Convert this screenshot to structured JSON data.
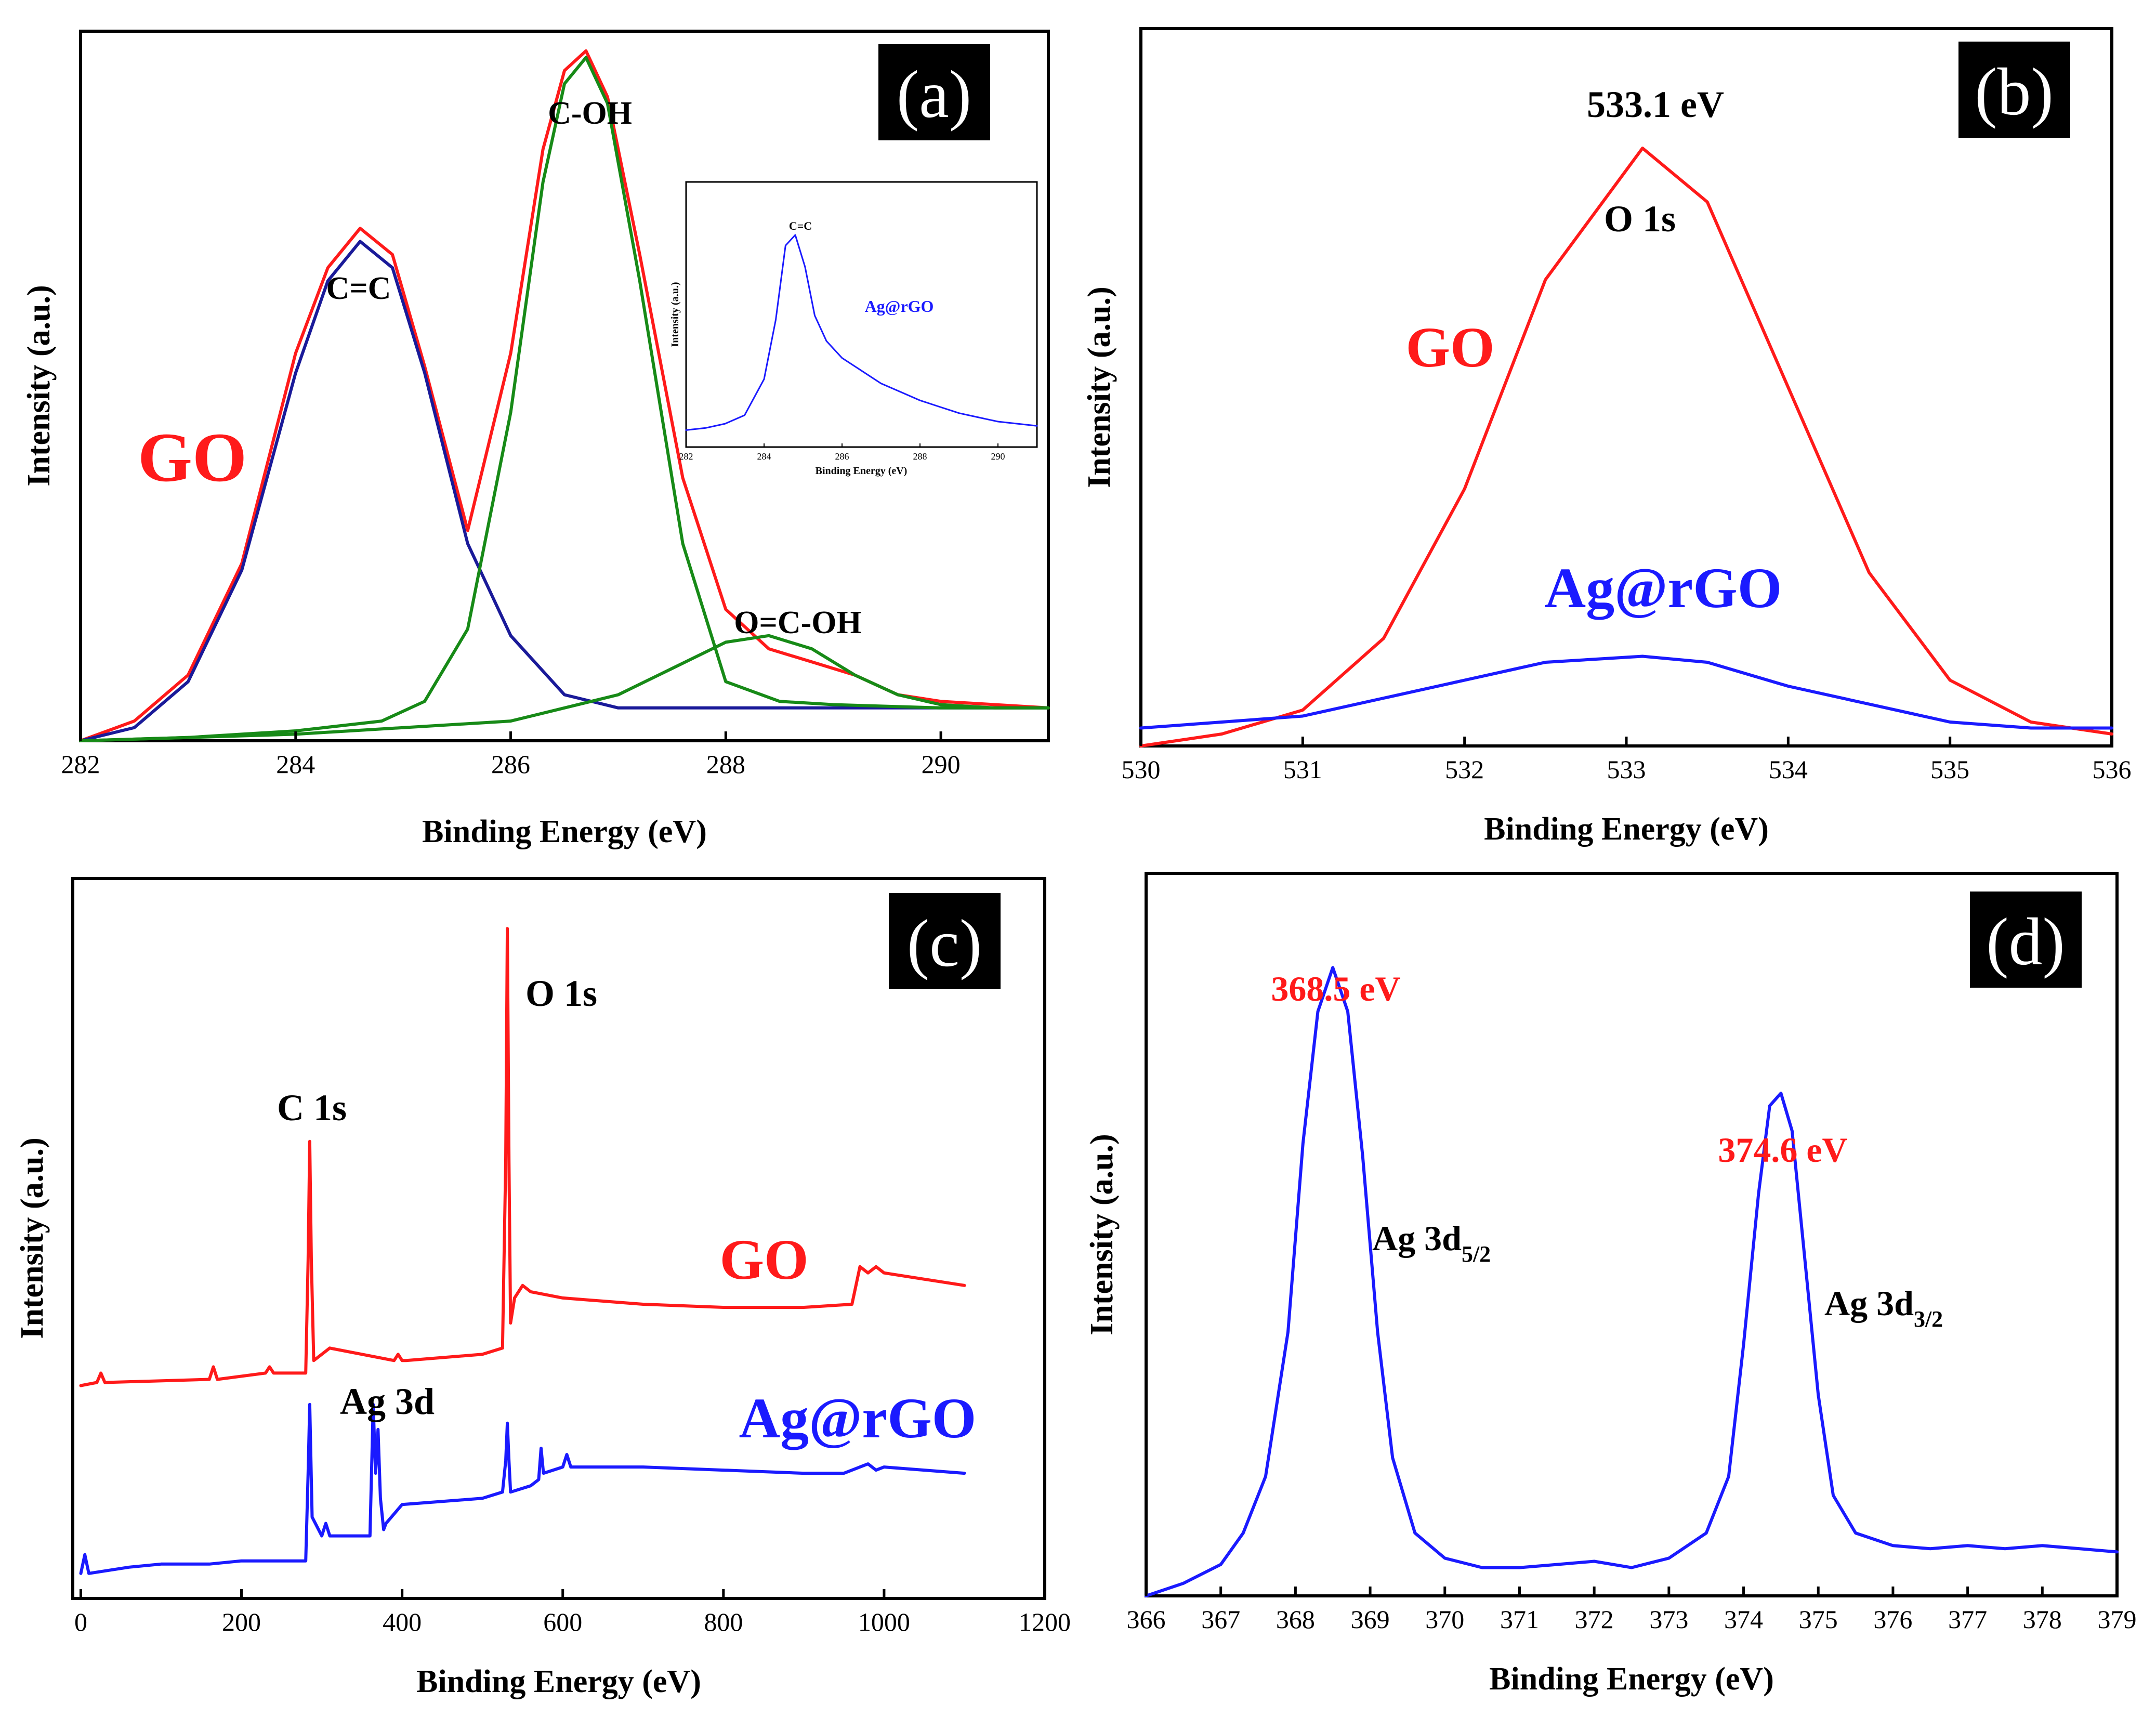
{
  "figure": {
    "description": "XPS spectra of GO and Ag@rGO"
  },
  "colors": {
    "red": "#ff1a1a",
    "blue": "#1a1aff",
    "green": "#178a17",
    "navy": "#1a1a99",
    "black": "#000000"
  },
  "panels": [
    {
      "tag": "(a)",
      "xlabel": "Binding Energy (eV)",
      "ylabel": "Intensity (a.u.)",
      "sample_label": "GO"
    },
    {
      "tag": "(b)",
      "xlabel": "Binding Energy (eV)",
      "ylabel": "Intensity (a.u.)"
    },
    {
      "tag": "(c)",
      "xlabel": "Binding Energy (eV)",
      "ylabel": "Intensity (a.u.)"
    },
    {
      "tag": "(d)",
      "xlabel": "Binding Energy (eV)",
      "ylabel": "Intensity (a.u.)"
    }
  ],
  "chart_data": [
    {
      "id": "a",
      "type": "line",
      "title": "(a)",
      "xlabel": "Binding Energy (eV)",
      "ylabel": "Intensity (a.u.)",
      "xlim": [
        282,
        291
      ],
      "xticks": [
        282,
        284,
        286,
        288,
        290
      ],
      "ylim": [
        0,
        1.08
      ],
      "yticks_shown": false,
      "series": [
        {
          "name": "GO (envelope)",
          "color": "#ff1a1a",
          "x": [
            282,
            282.5,
            283,
            283.5,
            284,
            284.3,
            284.6,
            284.9,
            285.2,
            285.6,
            286,
            286.3,
            286.5,
            286.7,
            286.9,
            287.2,
            287.6,
            288,
            288.4,
            288.8,
            289.2,
            289.6,
            290,
            290.5,
            291
          ],
          "y": [
            0.0,
            0.03,
            0.1,
            0.27,
            0.59,
            0.72,
            0.78,
            0.74,
            0.57,
            0.32,
            0.59,
            0.9,
            1.02,
            1.05,
            0.98,
            0.74,
            0.4,
            0.2,
            0.14,
            0.12,
            0.1,
            0.07,
            0.06,
            0.055,
            0.05
          ]
        },
        {
          "name": "C=C fit",
          "color": "#1a1a99",
          "x": [
            282,
            282.5,
            283,
            283.5,
            284,
            284.3,
            284.6,
            284.9,
            285.2,
            285.6,
            286,
            286.5,
            287,
            288,
            289,
            290,
            291
          ],
          "y": [
            0.0,
            0.02,
            0.09,
            0.26,
            0.56,
            0.7,
            0.76,
            0.72,
            0.56,
            0.3,
            0.16,
            0.07,
            0.05,
            0.05,
            0.05,
            0.05,
            0.05
          ]
        },
        {
          "name": "C-OH fit",
          "color": "#178a17",
          "x": [
            282,
            283,
            284,
            284.8,
            285.2,
            285.6,
            286,
            286.3,
            286.5,
            286.7,
            286.9,
            287.2,
            287.6,
            288,
            288.5,
            289,
            290,
            291
          ],
          "y": [
            0.0,
            0.005,
            0.015,
            0.03,
            0.06,
            0.17,
            0.5,
            0.85,
            1.0,
            1.04,
            0.97,
            0.7,
            0.3,
            0.09,
            0.06,
            0.055,
            0.05,
            0.05
          ]
        },
        {
          "name": "O=C-OH fit",
          "color": "#178a17",
          "x": [
            282,
            284,
            286,
            287,
            287.5,
            288,
            288.4,
            288.8,
            289.2,
            289.6,
            290,
            290.5,
            291
          ],
          "y": [
            0.0,
            0.01,
            0.03,
            0.07,
            0.11,
            0.15,
            0.16,
            0.14,
            0.1,
            0.07,
            0.055,
            0.05,
            0.05
          ]
        }
      ],
      "annotations": [
        {
          "text": "C=C",
          "x": 284.6,
          "y": 0.82
        },
        {
          "text": "C-OH",
          "x": 286.7,
          "y": 1.1
        },
        {
          "text": "O=C-OH",
          "x": 288.7,
          "y": 0.22
        },
        {
          "text": "GO",
          "x": 283.0,
          "y": 0.5,
          "color": "#ff1a1a"
        }
      ],
      "inset": {
        "xlabel": "Binding Energy (eV)",
        "ylabel": "Intensity (a.u.)",
        "xlim": [
          282,
          291
        ],
        "xticks": [
          282,
          284,
          286,
          288,
          290
        ],
        "ylim": [
          0,
          1.25
        ],
        "series": [
          {
            "name": "Ag@rGO",
            "color": "#1a1aff",
            "x": [
              282,
              282.5,
              283,
              283.5,
              284,
              284.3,
              284.55,
              284.8,
              285.05,
              285.3,
              285.6,
              286,
              286.5,
              287,
              287.5,
              288,
              288.5,
              289,
              289.5,
              290,
              290.5,
              291
            ],
            "y": [
              0.08,
              0.09,
              0.11,
              0.15,
              0.32,
              0.6,
              0.95,
              1.0,
              0.85,
              0.62,
              0.5,
              0.42,
              0.36,
              0.3,
              0.26,
              0.22,
              0.19,
              0.16,
              0.14,
              0.12,
              0.11,
              0.1
            ]
          }
        ],
        "annotations": [
          {
            "text": "C=C",
            "x": 284.8,
            "y": 1.05
          },
          {
            "text": "Ag@rGO",
            "x": 287.3,
            "y": 0.72,
            "color": "#1a1aff"
          }
        ]
      }
    },
    {
      "id": "b",
      "type": "line",
      "title": "(b)",
      "xlabel": "Binding Energy (eV)",
      "ylabel": "Intensity (a.u.)",
      "xlim": [
        530,
        536
      ],
      "xticks": [
        530,
        531,
        532,
        533,
        534,
        535,
        536
      ],
      "ylim": [
        0,
        1.2
      ],
      "yticks_shown": false,
      "series": [
        {
          "name": "GO",
          "color": "#ff1a1a",
          "x": [
            530,
            530.5,
            531,
            531.5,
            532,
            532.5,
            533.1,
            533.5,
            534,
            534.5,
            535,
            535.5,
            536
          ],
          "y": [
            0.0,
            0.02,
            0.06,
            0.18,
            0.43,
            0.78,
            1.0,
            0.91,
            0.6,
            0.29,
            0.11,
            0.04,
            0.02
          ]
        },
        {
          "name": "Ag@rGO",
          "color": "#1a1aff",
          "x": [
            530,
            530.5,
            531,
            531.5,
            532,
            532.5,
            533.1,
            533.5,
            534,
            534.5,
            535,
            535.5,
            536
          ],
          "y": [
            0.03,
            0.04,
            0.05,
            0.08,
            0.11,
            0.14,
            0.15,
            0.14,
            0.1,
            0.07,
            0.04,
            0.03,
            0.03
          ]
        }
      ],
      "annotations": [
        {
          "text": "533.1 eV",
          "x": 533.1,
          "y": 1.05
        },
        {
          "text": "O 1s",
          "x": 533.2,
          "y": 0.85
        },
        {
          "text": "GO",
          "x": 531.7,
          "y": 0.6,
          "color": "#ff1a1a"
        },
        {
          "text": "Ag@rGO",
          "x": 533.2,
          "y": 0.21,
          "color": "#1a1aff"
        }
      ]
    },
    {
      "id": "c",
      "type": "line",
      "title": "(c)",
      "xlabel": "Binding Energy (eV)",
      "ylabel": "Intensity (a.u.)",
      "xlim": [
        -10,
        1200
      ],
      "xticks": [
        0,
        200,
        400,
        600,
        800,
        1000,
        1200
      ],
      "ylim": [
        0,
        1.15
      ],
      "yticks_shown": false,
      "series": [
        {
          "name": "GO",
          "color": "#ff1a1a",
          "x": [
            0,
            20,
            25,
            30,
            160,
            165,
            170,
            230,
            235,
            240,
            280,
            283,
            285,
            287,
            290,
            300,
            310,
            350,
            390,
            395,
            400,
            405,
            500,
            525,
            529,
            531,
            533,
            535,
            540,
            550,
            560,
            600,
            700,
            800,
            900,
            960,
            970,
            980,
            990,
            1000,
            1050,
            1100
          ],
          "y": [
            0.34,
            0.345,
            0.36,
            0.345,
            0.35,
            0.37,
            0.35,
            0.36,
            0.37,
            0.36,
            0.36,
            0.54,
            0.73,
            0.54,
            0.38,
            0.39,
            0.4,
            0.39,
            0.38,
            0.39,
            0.38,
            0.38,
            0.39,
            0.4,
            0.7,
            1.07,
            0.7,
            0.44,
            0.48,
            0.5,
            0.49,
            0.48,
            0.47,
            0.465,
            0.465,
            0.47,
            0.53,
            0.52,
            0.53,
            0.52,
            0.51,
            0.5
          ]
        },
        {
          "name": "Ag@rGO",
          "color": "#1a1aff",
          "x": [
            0,
            5,
            10,
            60,
            100,
            160,
            200,
            280,
            283,
            285,
            288,
            300,
            305,
            310,
            360,
            364,
            367,
            370,
            373,
            377,
            380,
            400,
            500,
            525,
            529,
            531,
            533,
            535,
            560,
            570,
            573,
            576,
            600,
            605,
            610,
            650,
            700,
            800,
            900,
            950,
            970,
            980,
            990,
            1000,
            1050,
            1100
          ],
          "y": [
            0.04,
            0.07,
            0.04,
            0.05,
            0.055,
            0.055,
            0.06,
            0.06,
            0.2,
            0.31,
            0.13,
            0.1,
            0.12,
            0.1,
            0.1,
            0.31,
            0.2,
            0.27,
            0.16,
            0.11,
            0.12,
            0.15,
            0.16,
            0.17,
            0.22,
            0.28,
            0.22,
            0.17,
            0.18,
            0.19,
            0.24,
            0.2,
            0.21,
            0.23,
            0.21,
            0.21,
            0.21,
            0.205,
            0.2,
            0.2,
            0.21,
            0.215,
            0.205,
            0.21,
            0.205,
            0.2
          ]
        }
      ],
      "annotations": [
        {
          "text": "C 1s",
          "x": 285,
          "y": 0.79
        },
        {
          "text": "O 1s",
          "x": 590,
          "y": 1.0
        },
        {
          "text": "Ag 3d",
          "x": 380,
          "y": 0.37
        },
        {
          "text": "GO",
          "x": 840,
          "y": 0.55,
          "color": "#ff1a1a"
        },
        {
          "text": "Ag@rGO",
          "x": 920,
          "y": 0.28,
          "color": "#1a1aff"
        }
      ]
    },
    {
      "id": "d",
      "type": "line",
      "title": "(d)",
      "xlabel": "Binding Energy (eV)",
      "ylabel": "Intensity (a.u.)",
      "xlim": [
        366,
        379
      ],
      "xticks": [
        366,
        367,
        368,
        369,
        370,
        371,
        372,
        373,
        374,
        375,
        376,
        377,
        378,
        379
      ],
      "ylim": [
        0,
        1.15
      ],
      "yticks_shown": false,
      "series": [
        {
          "name": "Ag@rGO",
          "color": "#1a1aff",
          "x": [
            366,
            366.5,
            367,
            367.3,
            367.6,
            367.9,
            368.1,
            368.3,
            368.5,
            368.7,
            368.9,
            369.1,
            369.3,
            369.6,
            370,
            370.5,
            371,
            371.5,
            372,
            372.5,
            373,
            373.5,
            373.8,
            374.0,
            374.2,
            374.35,
            374.5,
            374.65,
            374.8,
            375.0,
            375.2,
            375.5,
            376,
            376.5,
            377,
            377.5,
            378,
            378.5,
            379
          ],
          "y": [
            0.0,
            0.02,
            0.05,
            0.1,
            0.19,
            0.42,
            0.72,
            0.93,
            1.0,
            0.93,
            0.7,
            0.42,
            0.22,
            0.1,
            0.06,
            0.045,
            0.045,
            0.05,
            0.055,
            0.045,
            0.06,
            0.1,
            0.19,
            0.4,
            0.64,
            0.78,
            0.8,
            0.74,
            0.56,
            0.32,
            0.16,
            0.1,
            0.08,
            0.075,
            0.08,
            0.075,
            0.08,
            0.075,
            0.07
          ]
        }
      ],
      "annotations": [
        {
          "text": "368.5 eV",
          "x": 368.5,
          "y": 1.04,
          "color": "#ff1a1a"
        },
        {
          "text": "374.6 eV",
          "x": 374.6,
          "y": 0.84,
          "color": "#ff1a1a"
        },
        {
          "text": "Ag 3d",
          "sub": "5/2",
          "x": 369.2,
          "y": 0.63
        },
        {
          "text": "Ag 3d",
          "sub": "3/2",
          "x": 375.2,
          "y": 0.47
        }
      ]
    }
  ]
}
